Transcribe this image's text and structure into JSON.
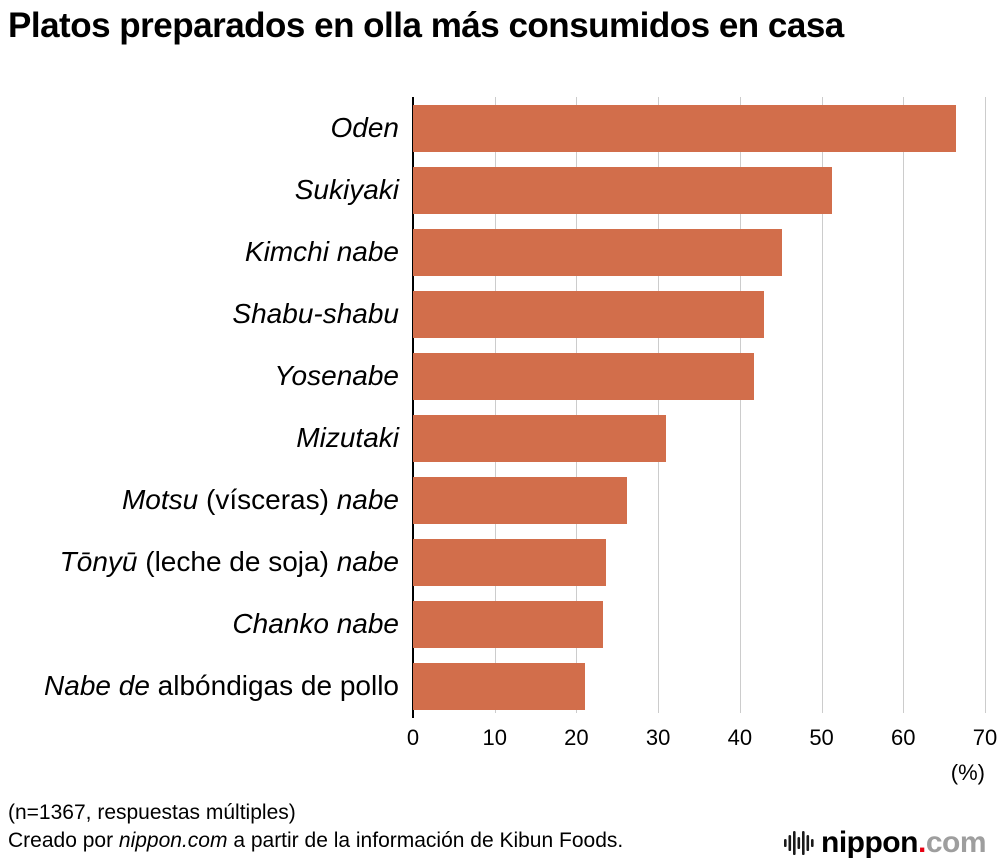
{
  "title": "Platos preparados en olla más consumidos en casa",
  "chart_data": {
    "type": "bar",
    "orientation": "horizontal",
    "title": "Platos preparados en olla más consumidos en casa",
    "xlabel": "(%)",
    "xlim": [
      0,
      70
    ],
    "xticks": [
      0,
      10,
      20,
      30,
      40,
      50,
      60,
      70
    ],
    "grid": true,
    "bar_color": "#d26e4b",
    "grid_color": "#cccccc",
    "axis_color": "#000000",
    "categories": [
      "Oden",
      "Sukiyaki",
      "Kimchi nabe",
      "Shabu-shabu",
      "Yosenabe",
      "Mizutaki",
      "Motsu (vísceras) nabe",
      "Tōnyū (leche de soja) nabe",
      "Chanko nabe",
      "Nabe de albóndigas de pollo"
    ],
    "values": [
      66.4,
      51.3,
      45.2,
      42.9,
      41.7,
      31.0,
      26.2,
      23.6,
      23.3,
      21.1
    ],
    "label_parts": [
      [
        {
          "t": "Oden",
          "i": true
        }
      ],
      [
        {
          "t": "Sukiyaki",
          "i": true
        }
      ],
      [
        {
          "t": "Kimchi nabe",
          "i": true
        }
      ],
      [
        {
          "t": "Shabu-shabu",
          "i": true
        }
      ],
      [
        {
          "t": "Yosenabe",
          "i": true
        }
      ],
      [
        {
          "t": "Mizutaki",
          "i": true
        }
      ],
      [
        {
          "t": "Motsu",
          "i": true
        },
        {
          "t": " (vísceras) ",
          "i": false
        },
        {
          "t": "nabe",
          "i": true
        }
      ],
      [
        {
          "t": "Tōnyū",
          "i": true
        },
        {
          "t": " (leche de soja) ",
          "i": false
        },
        {
          "t": "nabe",
          "i": true
        }
      ],
      [
        {
          "t": "Chanko nabe",
          "i": true
        }
      ],
      [
        {
          "t": "Nabe de",
          "i": true
        },
        {
          "t": " albóndigas de pollo",
          "i": false
        }
      ]
    ]
  },
  "footer": {
    "line1": "(n=1367, respuestas múltiples)",
    "line2_parts": [
      {
        "t": "Creado por ",
        "i": false
      },
      {
        "t": "nippon.com",
        "i": true
      },
      {
        "t": " a partir de la información de Kibun Foods.",
        "i": false
      }
    ]
  },
  "logo": {
    "icon": "equalizer-bars-icon",
    "nippon": "nippon",
    "dot": ".",
    "com": "com",
    "nippon_color": "#000000",
    "dot_color": "#e60012",
    "com_color": "#9e9e9e"
  }
}
